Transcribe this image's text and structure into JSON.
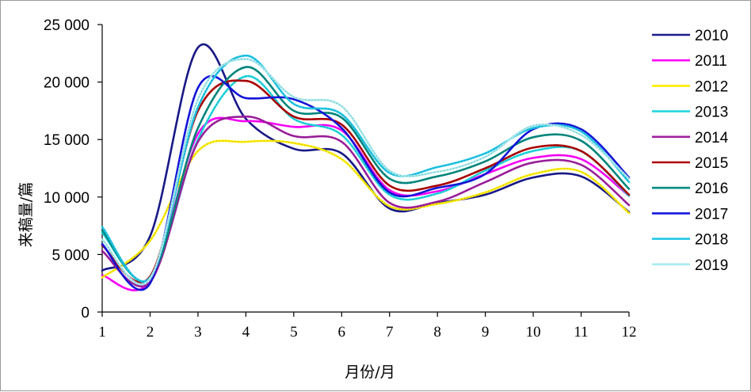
{
  "chart_data": {
    "type": "line",
    "title": "",
    "xlabel": "月份/月",
    "ylabel": "来稿量/篇",
    "categories": [
      "1",
      "2",
      "3",
      "4",
      "5",
      "6",
      "7",
      "8",
      "9",
      "10",
      "11",
      "12"
    ],
    "yticks": [
      "0",
      "5 000",
      "10 000",
      "15 000",
      "20 000",
      "25 000"
    ],
    "ylim": [
      0,
      25000
    ],
    "grid": false,
    "legend_position": "right",
    "series": [
      {
        "name": "2010",
        "color": "#1a1a8c",
        "values": [
          3600,
          6600,
          23000,
          16800,
          14200,
          13800,
          9000,
          9500,
          10200,
          11700,
          11800,
          8700
        ]
      },
      {
        "name": "2011",
        "color": "#ff00ff",
        "values": [
          3200,
          2700,
          15500,
          16600,
          16100,
          15800,
          10600,
          10500,
          12000,
          13400,
          13300,
          10100
        ]
      },
      {
        "name": "2012",
        "color": "#ffee00",
        "values": [
          3000,
          6200,
          14000,
          14800,
          14700,
          13300,
          9200,
          9400,
          10400,
          12000,
          12200,
          8600
        ]
      },
      {
        "name": "2013",
        "color": "#22d8e0",
        "values": [
          6900,
          2900,
          15000,
          20500,
          16800,
          15400,
          10200,
          10300,
          12300,
          14000,
          14000,
          10100
        ]
      },
      {
        "name": "2014",
        "color": "#a020a0",
        "values": [
          5300,
          2600,
          14800,
          17000,
          15300,
          14800,
          9500,
          9600,
          11300,
          13000,
          12800,
          9300
        ]
      },
      {
        "name": "2015",
        "color": "#b00000",
        "values": [
          5800,
          3100,
          17500,
          20100,
          17000,
          16300,
          11000,
          11000,
          12500,
          14300,
          14000,
          10200
        ]
      },
      {
        "name": "2016",
        "color": "#008a80",
        "values": [
          7100,
          2900,
          16000,
          21300,
          17500,
          16900,
          11600,
          11800,
          13100,
          15200,
          14900,
          10700
        ]
      },
      {
        "name": "2017",
        "color": "#1515e0",
        "values": [
          5900,
          2500,
          19500,
          18600,
          18500,
          16000,
          10400,
          10800,
          12000,
          15900,
          15900,
          11700
        ]
      },
      {
        "name": "2018",
        "color": "#20c8e8",
        "values": [
          7400,
          3000,
          17800,
          22300,
          18100,
          17200,
          12100,
          12600,
          13800,
          16000,
          15700,
          11300
        ]
      },
      {
        "name": "2019",
        "color": "#a8ecf0",
        "values": [
          6300,
          2900,
          18500,
          22000,
          18700,
          17900,
          12300,
          12200,
          13500,
          16200,
          15400,
          11600
        ]
      }
    ]
  }
}
